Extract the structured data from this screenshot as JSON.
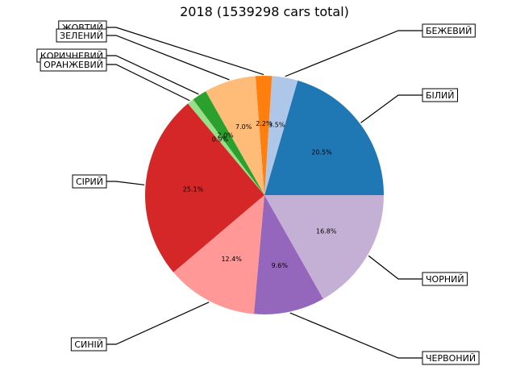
{
  "chart_data": {
    "type": "pie",
    "title": "2018 (1539298 cars total)",
    "start_angle_deg": 0,
    "direction": "counterclockwise",
    "slices": [
      {
        "label": "БІЛИЙ",
        "percent": 20.5,
        "percent_label": "20.5%",
        "color": "#1f77b4"
      },
      {
        "label": "БЕЖЕВИЙ",
        "percent": 3.5,
        "percent_label": "3.5%",
        "color": "#aec7e8"
      },
      {
        "label": "ЖОВТИЙ",
        "percent": 2.2,
        "percent_label": "2.2%",
        "color": "#ff7f0e"
      },
      {
        "label": "ЗЕЛЕНИЙ",
        "percent": 7.0,
        "percent_label": "7.0%",
        "color": "#ffbb78"
      },
      {
        "label": "КОРИЧНЕВИЙ",
        "percent": 2.0,
        "percent_label": "2.0%",
        "color": "#2ca02c"
      },
      {
        "label": "ОРАНЖЕВИЙ",
        "percent": 0.9,
        "percent_label": "0.9%",
        "color": "#98df8a"
      },
      {
        "label": "СІРИЙ",
        "percent": 25.1,
        "percent_label": "25.1%",
        "color": "#d62728"
      },
      {
        "label": "СИНІЙ",
        "percent": 12.4,
        "percent_label": "12.4%",
        "color": "#ff9896"
      },
      {
        "label": "ЧЕРВОНИЙ",
        "percent": 9.6,
        "percent_label": "9.6%",
        "color": "#9467bd"
      },
      {
        "label": "ЧОРНИЙ",
        "percent": 16.8,
        "percent_label": "16.8%",
        "color": "#c5b0d5"
      }
    ]
  }
}
